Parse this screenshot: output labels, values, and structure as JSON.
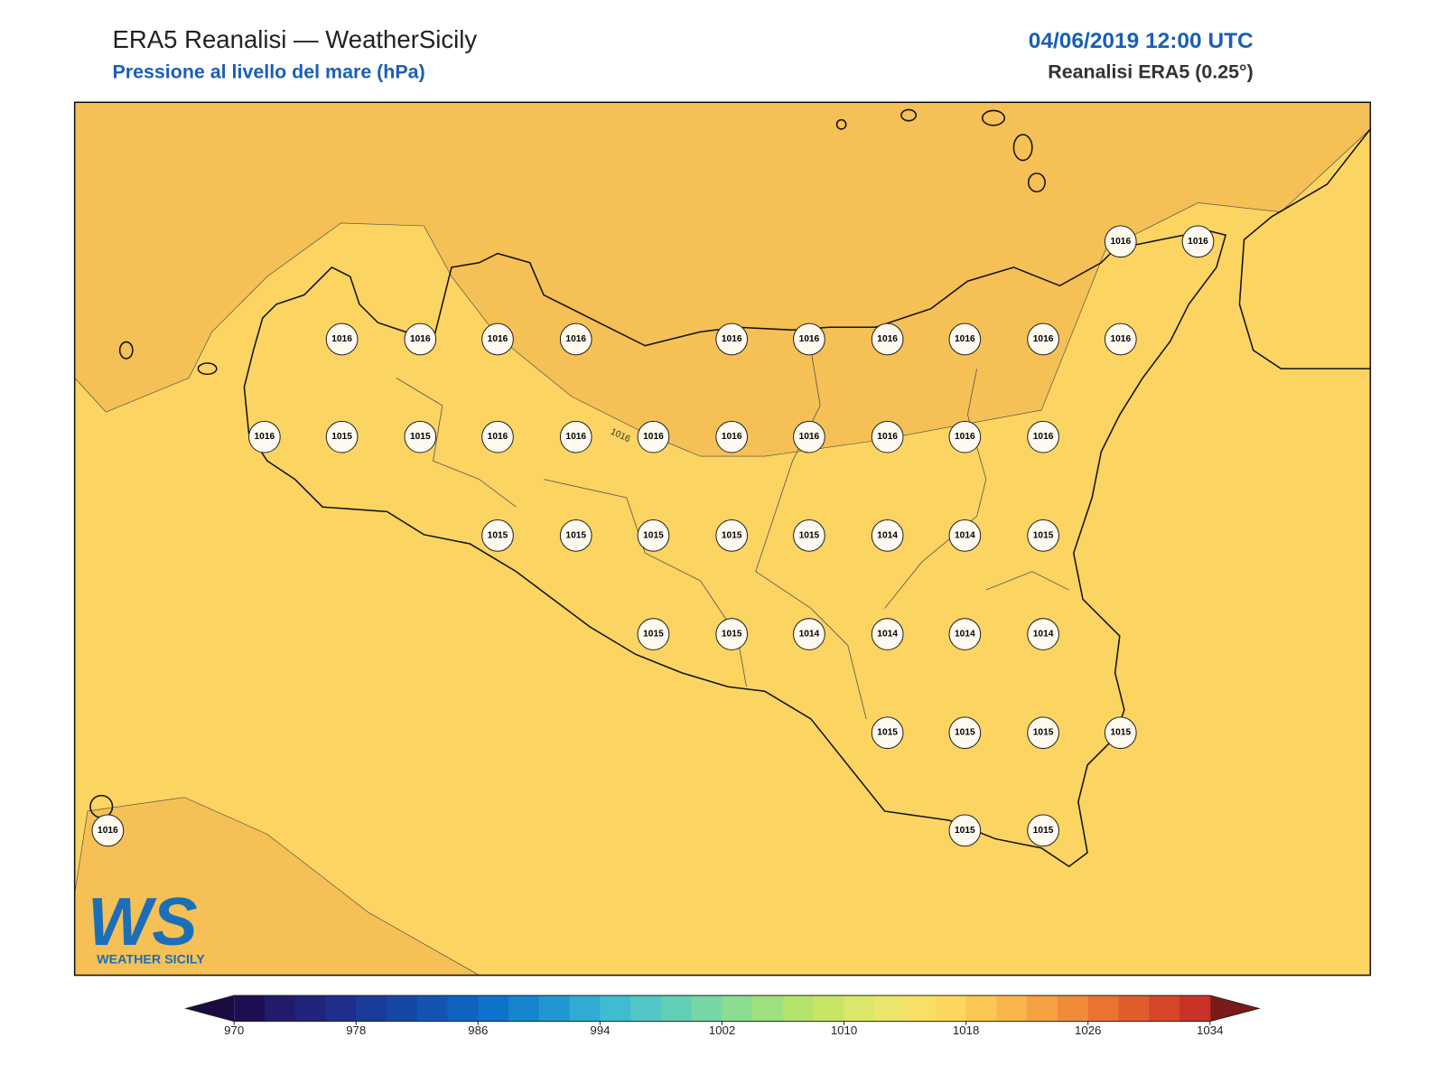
{
  "header": {
    "title": "ERA5 Reanalisi — WeatherSicily",
    "subtitle": "Pressione al livello del mare (hPa)",
    "date": "04/06/2019 12:00 UTC",
    "source": "Reanalisi ERA5 (0.25°)"
  },
  "map": {
    "contour_label": "1016",
    "stations": [
      1016,
      1016,
      1016,
      1016,
      1016,
      1016,
      1016,
      1016,
      1016,
      1016,
      1016,
      1016,
      1016,
      1015,
      1015,
      1016,
      1016,
      1016,
      1016,
      1016,
      1016,
      1016,
      1016,
      1015,
      1015,
      1015,
      1015,
      1015,
      1014,
      1014,
      1015,
      1015,
      1015,
      1014,
      1014,
      1014,
      1014,
      1015,
      1015,
      1015,
      1015,
      1016,
      1015,
      1015
    ]
  },
  "logo": {
    "mark": "WS",
    "name": "WEATHER SICILY"
  },
  "colorbar": {
    "range": [
      970,
      1034
    ],
    "ticks": [
      970,
      978,
      986,
      994,
      1002,
      1010,
      1018,
      1026,
      1034
    ],
    "under_color": "#1a0b40",
    "over_color": "#7a1a1a",
    "colors": [
      "#1d0f52",
      "#221a6b",
      "#22237b",
      "#1f2e8a",
      "#1a3b98",
      "#1647a6",
      "#1354b3",
      "#1062c0",
      "#0f72cc",
      "#1784cf",
      "#2296d2",
      "#30abd4",
      "#40bcd0",
      "#52c6c4",
      "#63ceb6",
      "#77d6a6",
      "#8cdc92",
      "#a0e07f",
      "#b4e46e",
      "#c8e666",
      "#dbe86a",
      "#ebe56b",
      "#f7e065",
      "#fdd65d",
      "#fbc653",
      "#f9b54a",
      "#f6a142",
      "#f08b3a",
      "#e87332",
      "#e05d2c",
      "#d54728",
      "#c93227"
    ]
  }
}
